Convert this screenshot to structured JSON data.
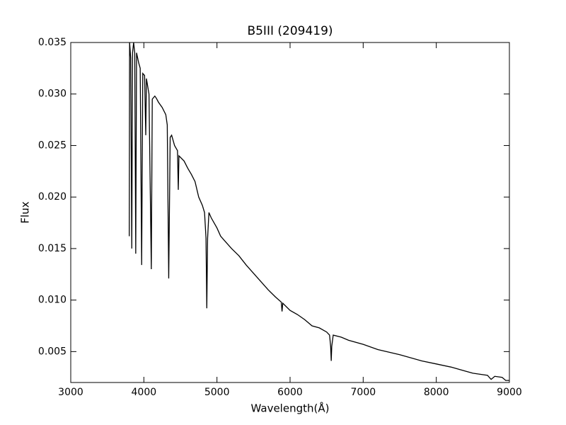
{
  "chart_data": {
    "type": "line",
    "title": "B5III (209419)",
    "xlabel": "Wavelength(Å)",
    "ylabel": "Flux",
    "color": "#000000",
    "x": [
      3800,
      3805,
      3820,
      3835,
      3845,
      3860,
      3875,
      3889,
      3900,
      3930,
      3950,
      3970,
      3985,
      4010,
      4026,
      4035,
      4070,
      4102,
      4115,
      4150,
      4170,
      4200,
      4250,
      4300,
      4320,
      4340,
      4360,
      4380,
      4400,
      4420,
      4460,
      4471,
      4480,
      4550,
      4600,
      4650,
      4700,
      4750,
      4800,
      4830,
      4850,
      4861,
      4872,
      4890,
      4920,
      5000,
      5050,
      5100,
      5200,
      5300,
      5400,
      5500,
      5600,
      5700,
      5800,
      5880,
      5890,
      5900,
      6000,
      6100,
      6200,
      6300,
      6400,
      6500,
      6540,
      6555,
      6563,
      6570,
      6590,
      6700,
      6800,
      7000,
      7200,
      7500,
      7800,
      8000,
      8200,
      8400,
      8500,
      8600,
      8700,
      8750,
      8800,
      8900,
      8950,
      9000
    ],
    "values": [
      0.0162,
      0.035,
      0.0335,
      0.015,
      0.034,
      0.035,
      0.034,
      0.0145,
      0.034,
      0.033,
      0.0325,
      0.0134,
      0.032,
      0.0318,
      0.026,
      0.0315,
      0.03,
      0.013,
      0.0295,
      0.0298,
      0.0296,
      0.0292,
      0.0287,
      0.028,
      0.027,
      0.0121,
      0.0258,
      0.026,
      0.0255,
      0.025,
      0.0245,
      0.0207,
      0.024,
      0.0235,
      0.0228,
      0.0222,
      0.0215,
      0.02,
      0.0192,
      0.0185,
      0.016,
      0.0092,
      0.016,
      0.0185,
      0.018,
      0.017,
      0.0162,
      0.0158,
      0.015,
      0.0143,
      0.0134,
      0.0126,
      0.0118,
      0.011,
      0.0103,
      0.0098,
      0.0089,
      0.0097,
      0.009,
      0.0086,
      0.0081,
      0.0075,
      0.0073,
      0.0069,
      0.0066,
      0.0055,
      0.0041,
      0.0055,
      0.0066,
      0.0064,
      0.0061,
      0.0057,
      0.0052,
      0.0047,
      0.0041,
      0.0038,
      0.0035,
      0.0031,
      0.0029,
      0.0028,
      0.0027,
      0.0023,
      0.0026,
      0.0025,
      0.0022,
      0.0022
    ],
    "xlim": [
      3000,
      9000
    ],
    "xticks": [
      3000,
      4000,
      5000,
      6000,
      7000,
      8000,
      9000
    ],
    "ylim": [
      0.002,
      0.035
    ],
    "yticks": [
      0.005,
      {
        "value": 0.01,
        "label": "0.010"
      },
      0.015,
      {
        "value": 0.02,
        "label": "0.020"
      },
      0.025,
      {
        "value": 0.03,
        "label": "0.030"
      },
      0.035
    ],
    "grid": false
  }
}
